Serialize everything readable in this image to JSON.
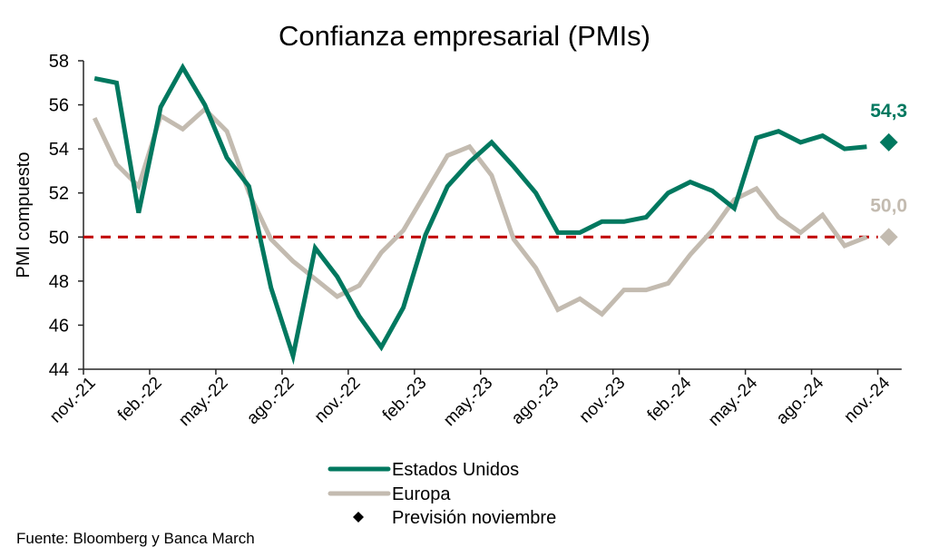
{
  "chart_data": {
    "type": "line",
    "title": "Confianza empresarial (PMIs)",
    "xlabel": "",
    "ylabel": "PMI compuesto",
    "ylim": [
      44,
      58
    ],
    "yticks": [
      "44",
      "46",
      "48",
      "50",
      "52",
      "54",
      "56",
      "58"
    ],
    "ytick_values": [
      44,
      46,
      48,
      50,
      52,
      54,
      56,
      58
    ],
    "x": [
      "nov.-21",
      "dic.-21",
      "ene.-22",
      "feb.-22",
      "mar.-22",
      "abr.-22",
      "may.-22",
      "jun.-22",
      "jul.-22",
      "ago.-22",
      "sep.-22",
      "oct.-22",
      "nov.-22",
      "dic.-22",
      "ene.-23",
      "feb.-23",
      "mar.-23",
      "abr.-23",
      "may.-23",
      "jun.-23",
      "jul.-23",
      "ago.-23",
      "sep.-23",
      "oct.-23",
      "nov.-23",
      "dic.-23",
      "ene.-24",
      "feb.-24",
      "mar.-24",
      "abr.-24",
      "may.-24",
      "jun.-24",
      "jul.-24",
      "ago.-24",
      "sep.-24",
      "oct.-24",
      "nov.-24"
    ],
    "xtick_labels": [
      "nov.-21",
      "feb.-22",
      "may.-22",
      "ago.-22",
      "nov.-22",
      "feb.-23",
      "may.-23",
      "ago.-23",
      "nov.-23",
      "feb.-24",
      "may.-24",
      "ago.-24",
      "nov.-24"
    ],
    "series": [
      {
        "name": "Estados Unidos",
        "color": "#00785f",
        "values": [
          57.2,
          57.0,
          51.1,
          55.9,
          57.7,
          56.0,
          53.6,
          52.3,
          47.7,
          44.6,
          49.5,
          48.2,
          46.4,
          45.0,
          46.8,
          50.1,
          52.3,
          53.4,
          54.3,
          53.2,
          52.0,
          50.2,
          50.2,
          50.7,
          50.7,
          50.9,
          52.0,
          52.5,
          52.1,
          51.3,
          54.5,
          54.8,
          54.3,
          54.6,
          54.0,
          54.1,
          null
        ]
      },
      {
        "name": "Europa",
        "color": "#c3bbb0",
        "values": [
          55.4,
          53.3,
          52.3,
          55.5,
          54.9,
          55.8,
          54.8,
          52.0,
          49.9,
          48.9,
          48.1,
          47.3,
          47.8,
          49.3,
          50.3,
          52.0,
          53.7,
          54.1,
          52.8,
          49.9,
          48.6,
          46.7,
          47.2,
          46.5,
          47.6,
          47.6,
          47.9,
          49.2,
          50.3,
          51.7,
          52.2,
          50.9,
          50.2,
          51.0,
          49.6,
          50.0,
          null
        ]
      }
    ],
    "forecast": {
      "name": "Previsión noviembre",
      "category": "nov.-24",
      "points": [
        {
          "series": "Estados Unidos",
          "value": 54.3,
          "label": "54,3",
          "color": "#00785f"
        },
        {
          "series": "Europa",
          "value": 50.0,
          "label": "50,0",
          "color": "#c3bbb0"
        }
      ]
    },
    "reference_line": {
      "value": 50,
      "color": "#c00000",
      "style": "dashed"
    },
    "legend": {
      "position": "bottom",
      "entries": [
        {
          "label": "Estados Unidos",
          "type": "line",
          "color": "#00785f"
        },
        {
          "label": "Europa",
          "type": "line",
          "color": "#c3bbb0"
        },
        {
          "label": "Previsión noviembre",
          "type": "diamond",
          "color": "#000000"
        }
      ]
    },
    "grid": false,
    "source": "Fuente: Bloomberg y Banca March"
  }
}
